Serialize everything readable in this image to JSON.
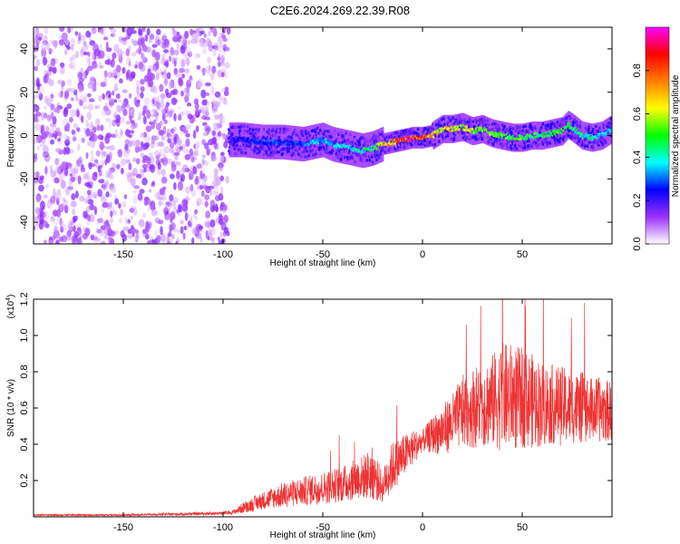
{
  "figure": {
    "title": "C2E6.2024.269.22.39.R08"
  },
  "colorbar": {
    "label": "Normalized spectral amplitude",
    "ticks": [
      "0.0",
      "0.2",
      "0.4",
      "0.6",
      "0.8"
    ],
    "colormap": [
      "#ffffff",
      "#9b30ff",
      "#0000ff",
      "#00ffff",
      "#00ff00",
      "#ffff00",
      "#ff8000",
      "#ff0000",
      "#ff00ff"
    ]
  },
  "chart_data": [
    {
      "type": "heatmap",
      "xlabel": "Height of straight line (km)",
      "ylabel": "Frequency (Hz)",
      "xlim": [
        -195,
        95
      ],
      "ylim": [
        -50,
        50
      ],
      "xticks": [
        "-150",
        "-100",
        "-50",
        "0",
        "50"
      ],
      "yticks": [
        "-40",
        "-20",
        "0",
        "20",
        "40"
      ],
      "noise_region_x": [
        -195,
        -97
      ],
      "signal_ridge": {
        "x": [
          -97,
          -90,
          -80,
          -70,
          -60,
          -55,
          -50,
          -45,
          -40,
          -35,
          -30,
          -25,
          -20,
          -15,
          -10,
          -5,
          0,
          5,
          10,
          15,
          20,
          25,
          30,
          35,
          40,
          45,
          50,
          55,
          60,
          65,
          70,
          73,
          76,
          80,
          85,
          90,
          95
        ],
        "freq": [
          -2,
          -2,
          -3,
          -3,
          -4,
          -3,
          -2,
          -4,
          -5,
          -6,
          -7,
          -6,
          -4,
          -3,
          -2,
          -1,
          -1,
          0,
          3,
          3,
          4,
          2,
          3,
          1,
          0,
          -1,
          -1,
          0,
          0,
          1,
          2,
          5,
          3,
          0,
          -1,
          0,
          3
        ],
        "amplitude": [
          0.2,
          0.25,
          0.3,
          0.3,
          0.3,
          0.4,
          0.35,
          0.35,
          0.4,
          0.4,
          0.45,
          0.5,
          0.7,
          0.8,
          0.9,
          0.95,
          0.9,
          0.75,
          0.7,
          0.7,
          0.65,
          0.65,
          0.6,
          0.6,
          0.55,
          0.55,
          0.55,
          0.55,
          0.5,
          0.5,
          0.55,
          0.6,
          0.5,
          0.45,
          0.45,
          0.4,
          0.4
        ]
      }
    },
    {
      "type": "line",
      "xlabel": "Height of straight line (km)",
      "ylabel": "SNR (10 * v/v)",
      "y_multiplier": "(x10",
      "y_multiplier_exp": "4",
      "y_multiplier_close": ")",
      "xlim": [
        -195,
        95
      ],
      "ylim": [
        0,
        1.2
      ],
      "xticks": [
        "-150",
        "-100",
        "-50",
        "0",
        "50"
      ],
      "yticks": [
        "0.2",
        "0.4",
        "0.6",
        "0.8",
        "1.0",
        "1.2"
      ],
      "series": [
        {
          "color": "#ee3333",
          "x": [
            -195,
            -150,
            -120,
            -100,
            -95,
            -90,
            -80,
            -70,
            -60,
            -50,
            -40,
            -30,
            -25,
            -20,
            -18,
            -15,
            -10,
            -5,
            0,
            5,
            10,
            15,
            20,
            25,
            30,
            35,
            40,
            45,
            50,
            55,
            60,
            65,
            70,
            75,
            80,
            85,
            90,
            95
          ],
          "mean": [
            0.01,
            0.01,
            0.015,
            0.02,
            0.025,
            0.05,
            0.09,
            0.12,
            0.14,
            0.16,
            0.18,
            0.22,
            0.24,
            0.16,
            0.22,
            0.28,
            0.33,
            0.38,
            0.42,
            0.45,
            0.48,
            0.52,
            0.58,
            0.6,
            0.62,
            0.64,
            0.66,
            0.66,
            0.65,
            0.64,
            0.62,
            0.62,
            0.61,
            0.6,
            0.6,
            0.59,
            0.59,
            0.58
          ],
          "spread": [
            0.005,
            0.005,
            0.008,
            0.01,
            0.012,
            0.03,
            0.05,
            0.07,
            0.08,
            0.09,
            0.1,
            0.12,
            0.15,
            0.08,
            0.12,
            0.14,
            0.12,
            0.1,
            0.06,
            0.1,
            0.14,
            0.16,
            0.2,
            0.22,
            0.24,
            0.26,
            0.3,
            0.3,
            0.28,
            0.26,
            0.24,
            0.22,
            0.22,
            0.2,
            0.2,
            0.18,
            0.18,
            0.16
          ]
        }
      ]
    }
  ]
}
